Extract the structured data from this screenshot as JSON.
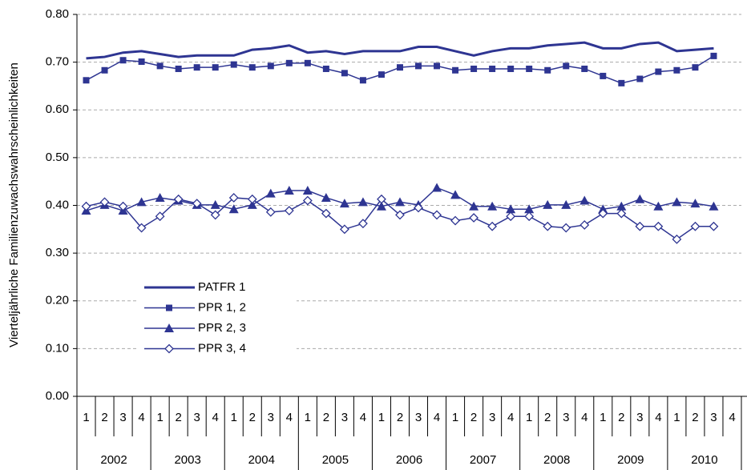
{
  "chart_data": {
    "type": "line",
    "y_label": "Vierteljährliche Familienzuwachswahrscheinlichkeiten",
    "categories": [
      "1",
      "2",
      "3",
      "4",
      "1",
      "2",
      "3",
      "4",
      "1",
      "2",
      "3",
      "4",
      "1",
      "2",
      "3",
      "4",
      "1",
      "2",
      "3",
      "4",
      "1",
      "2",
      "3",
      "4",
      "1",
      "2",
      "3",
      "4",
      "1",
      "2",
      "3",
      "4",
      "1",
      "2",
      "3",
      "4"
    ],
    "years": [
      "2002",
      "2003",
      "2004",
      "2005",
      "2006",
      "2007",
      "2008",
      "2009",
      "2010"
    ],
    "ylim": [
      0,
      0.8
    ],
    "yticks": [
      {
        "value": 0,
        "label": "0.00"
      },
      {
        "value": 0.1,
        "label": "0.10"
      },
      {
        "value": 0.2,
        "label": "0.20"
      },
      {
        "value": 0.3,
        "label": "0.30"
      },
      {
        "value": 0.4,
        "label": "0.40"
      },
      {
        "value": 0.5,
        "label": "0.50"
      },
      {
        "value": 0.6,
        "label": "0.60"
      },
      {
        "value": 0.7,
        "label": "0.70"
      },
      {
        "value": 0.8,
        "label": "0.80"
      }
    ],
    "grid": true,
    "legend": "lower left",
    "series": [
      {
        "name": "PATFR 1",
        "color": "#2e3592",
        "marker": "none",
        "values": [
          0.708,
          0.711,
          0.72,
          0.723,
          0.717,
          0.711,
          0.714,
          0.714,
          0.714,
          0.726,
          0.729,
          0.735,
          0.72,
          0.723,
          0.717,
          0.723,
          0.723,
          0.723,
          0.732,
          0.732,
          0.723,
          0.714,
          0.723,
          0.729,
          0.729,
          0.735,
          0.738,
          0.741,
          0.729,
          0.729,
          0.738,
          0.741,
          0.723,
          0.726,
          0.729,
          null
        ]
      },
      {
        "name": "PPR 1, 2",
        "color": "#2e3592",
        "marker": "square",
        "values": [
          0.662,
          0.683,
          0.704,
          0.701,
          0.692,
          0.686,
          0.689,
          0.689,
          0.695,
          0.689,
          0.692,
          0.698,
          0.698,
          0.686,
          0.677,
          0.662,
          0.674,
          0.689,
          0.692,
          0.692,
          0.683,
          0.686,
          0.686,
          0.686,
          0.686,
          0.683,
          0.692,
          0.686,
          0.671,
          0.656,
          0.665,
          0.68,
          0.683,
          0.689,
          0.713,
          null
        ]
      },
      {
        "name": "PPR 2, 3",
        "color": "#2e3592",
        "marker": "triangle",
        "values": [
          0.389,
          0.401,
          0.389,
          0.407,
          0.416,
          0.41,
          0.401,
          0.401,
          0.392,
          0.401,
          0.425,
          0.431,
          0.431,
          0.416,
          0.404,
          0.407,
          0.398,
          0.407,
          0.401,
          0.437,
          0.422,
          0.398,
          0.398,
          0.392,
          0.392,
          0.401,
          0.401,
          0.41,
          0.392,
          0.398,
          0.413,
          0.398,
          0.407,
          0.404,
          0.398,
          null
        ]
      },
      {
        "name": "PPR 3, 4",
        "color": "#2e3592",
        "marker": "diamond",
        "values": [
          0.398,
          0.407,
          0.398,
          0.353,
          0.377,
          0.413,
          0.404,
          0.38,
          0.416,
          0.413,
          0.386,
          0.389,
          0.41,
          0.383,
          0.35,
          0.362,
          0.413,
          0.38,
          0.395,
          0.38,
          0.368,
          0.374,
          0.356,
          0.377,
          0.377,
          0.356,
          0.353,
          0.359,
          0.383,
          0.383,
          0.356,
          0.356,
          0.329,
          0.356,
          0.356,
          null
        ]
      }
    ]
  }
}
